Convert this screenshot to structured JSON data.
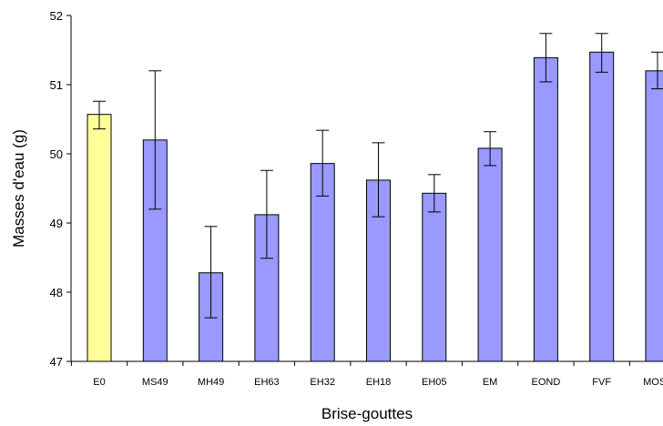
{
  "chart_data": {
    "type": "bar",
    "title": "",
    "xlabel": "Brise-gouttes",
    "ylabel": "Masses d'eau (g)",
    "ylim": [
      47,
      52
    ],
    "yticks": [
      47,
      48,
      49,
      50,
      51,
      52
    ],
    "grid": false,
    "legend": "none",
    "categories": [
      "E0",
      "MS49",
      "MH49",
      "EH63",
      "EH32",
      "EH18",
      "EH05",
      "EM",
      "EOND",
      "FVF",
      "MOST"
    ],
    "values": [
      50.57,
      50.2,
      48.28,
      49.12,
      49.86,
      49.62,
      49.43,
      50.08,
      51.39,
      51.47,
      51.2
    ],
    "error_low": [
      50.36,
      49.2,
      47.63,
      48.49,
      49.39,
      49.09,
      49.16,
      49.83,
      51.04,
      51.18,
      50.94
    ],
    "error_high": [
      50.76,
      51.2,
      48.95,
      49.76,
      50.34,
      50.16,
      49.7,
      50.32,
      51.74,
      51.74,
      51.47
    ],
    "colors": [
      "#ffff99",
      "#9999ff",
      "#9999ff",
      "#9999ff",
      "#9999ff",
      "#9999ff",
      "#9999ff",
      "#9999ff",
      "#9999ff",
      "#9999ff",
      "#9999ff"
    ]
  }
}
